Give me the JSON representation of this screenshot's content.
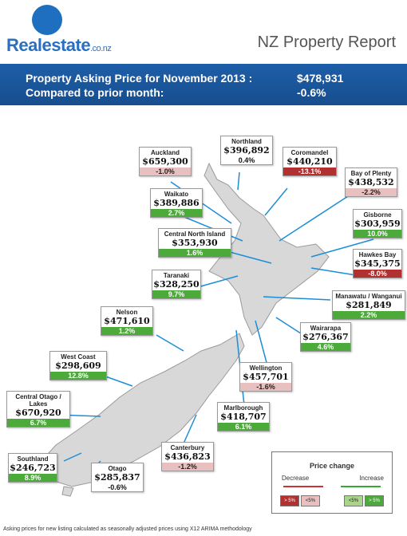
{
  "brand": {
    "name": "Realestate",
    "suffix": ".co.nz"
  },
  "report_title": "NZ Property Report",
  "banner": {
    "label1": "Property Asking Price for November 2013 :",
    "value1": "$478,931",
    "label2": "Compared to prior month:",
    "value2": "-0.6%"
  },
  "regions": [
    {
      "name": "Auckland",
      "price": "$659,300",
      "change": "-1.0%",
      "class": "r0"
    },
    {
      "name": "Northland",
      "price": "$396,892",
      "change": "0.4%",
      "class": "g0"
    },
    {
      "name": "Coromandel",
      "price": "$440,210",
      "change": "-13.1%",
      "class": "r1"
    },
    {
      "name": "Bay of Plenty",
      "price": "$438,532",
      "change": "-2.2%",
      "class": "r0"
    },
    {
      "name": "Waikato",
      "price": "$389,886",
      "change": "2.7%",
      "class": "g1"
    },
    {
      "name": "Gisborne",
      "price": "$303,959",
      "change": "10.0%",
      "class": "g1"
    },
    {
      "name": "Central North Island",
      "price": "$353,930",
      "change": "1.6%",
      "class": "g1"
    },
    {
      "name": "Hawkes Bay",
      "price": "$345,375",
      "change": "-8.0%",
      "class": "r1"
    },
    {
      "name": "Taranaki",
      "price": "$328,250",
      "change": "9.7%",
      "class": "g1"
    },
    {
      "name": "Manawatu / Wanganui",
      "price": "$281,849",
      "change": "2.2%",
      "class": "g1"
    },
    {
      "name": "Nelson",
      "price": "$471,610",
      "change": "1.2%",
      "class": "g1"
    },
    {
      "name": "Wairarapa",
      "price": "$276,367",
      "change": "4.6%",
      "class": "g1"
    },
    {
      "name": "West Coast",
      "price": "$298,609",
      "change": "12.8%",
      "class": "g1"
    },
    {
      "name": "Wellington",
      "price": "$457,701",
      "change": "-1.6%",
      "class": "r0"
    },
    {
      "name": "Central Otago / Lakes",
      "price": "$670,920",
      "change": "6.7%",
      "class": "g1"
    },
    {
      "name": "Marlborough",
      "price": "$418,707",
      "change": "6.1%",
      "class": "g1"
    },
    {
      "name": "Canterbury",
      "price": "$436,823",
      "change": "-1.2%",
      "class": "r0"
    },
    {
      "name": "Southland",
      "price": "$246,723",
      "change": "8.9%",
      "class": "g1"
    },
    {
      "name": "Otago",
      "price": "$285,837",
      "change": "-0.6%",
      "class": "g0"
    }
  ],
  "legend": {
    "title": "Price change",
    "decrease": "Decrease",
    "increase": "Increase",
    "swatches": [
      "> 5%",
      "<5%",
      "<5%",
      "> 5%"
    ]
  },
  "footer": "Asking prices for new listing calculated as seasonally adjusted prices using X12 ARIMA methodology"
}
